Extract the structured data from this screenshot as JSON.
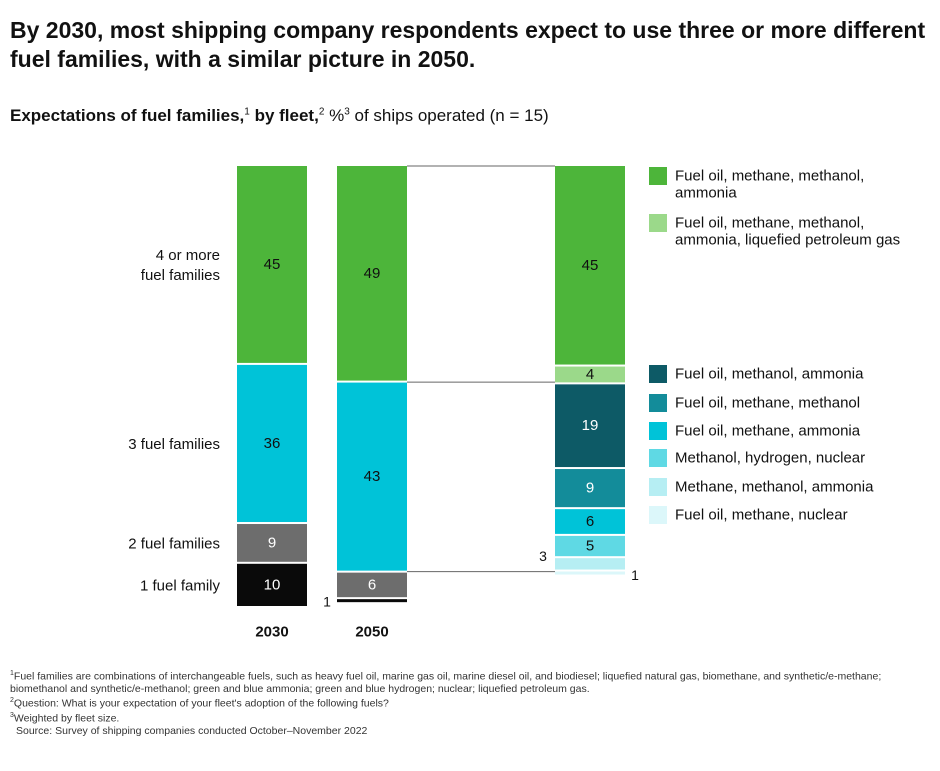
{
  "headline": "By 2030, most shipping company respondents expect to use three or more different fuel families, with a similar picture in 2050.",
  "subtitle": {
    "bold_part": "Expectations of fuel families,",
    "sup1": "1",
    "bold_part2": " by fleet,",
    "sup2": "2",
    "pct": " %",
    "sup3": "3",
    "rest": " of ships operated (n = 15)"
  },
  "chart_data": {
    "type": "bar",
    "stacked": true,
    "categories": [
      "2030",
      "2050"
    ],
    "row_labels": [
      {
        "lines": [
          "4 or more",
          "fuel families"
        ],
        "series": "4 or more fuel families"
      },
      {
        "lines": [
          "3 fuel families"
        ],
        "series": "3 fuel families"
      },
      {
        "lines": [
          "2 fuel families"
        ],
        "series": "2 fuel families"
      },
      {
        "lines": [
          "1 fuel family"
        ],
        "series": "1 fuel family"
      }
    ],
    "series": [
      {
        "name": "4 or more fuel families",
        "values": [
          45,
          49
        ],
        "color": "#4db53a",
        "labels": [
          "45",
          "49"
        ],
        "text_color": "#111"
      },
      {
        "name": "3 fuel families",
        "values": [
          36,
          43
        ],
        "color": "#00c3d8",
        "labels": [
          "36",
          "43"
        ],
        "text_color": "#111"
      },
      {
        "name": "2 fuel families",
        "values": [
          9,
          6
        ],
        "color": "#6d6d6d",
        "labels": [
          "9",
          "6"
        ],
        "text_color": "#ffffff"
      },
      {
        "name": "1 fuel family",
        "values": [
          10,
          1
        ],
        "color": "#0a0a0a",
        "labels": [
          "10",
          "1"
        ],
        "text_color": "#ffffff"
      }
    ],
    "breakdown": {
      "segments": [
        {
          "name": "Fuel oil, methane, methanol, ammonia",
          "value": 45,
          "label": "45",
          "color": "#4db53a",
          "text_color": "#111"
        },
        {
          "name": "Fuel oil, methane, methanol, ammonia, liquefied petroleum gas",
          "value": 4,
          "label": "4",
          "color": "#9bd98a",
          "text_color": "#111"
        },
        {
          "name": "Fuel oil, methanol, ammonia",
          "value": 19,
          "label": "19",
          "color": "#0d5a66",
          "text_color": "#ffffff"
        },
        {
          "name": "Fuel oil, methane, methanol",
          "value": 9,
          "label": "9",
          "color": "#138c9a",
          "text_color": "#ffffff"
        },
        {
          "name": "Fuel oil, methane, ammonia",
          "value": 6,
          "label": "6",
          "color": "#00c3d8",
          "text_color": "#111"
        },
        {
          "name": "Methanol, hydrogen, nuclear",
          "value": 5,
          "label": "5",
          "color": "#5fd9e4",
          "text_color": "#111"
        },
        {
          "name": "Methane, methanol, ammonia",
          "value": 3,
          "label": "3",
          "color": "#b6eef3",
          "text_color": "#111"
        },
        {
          "name": "Fuel oil, methane, nuclear",
          "value": 1,
          "label": "1",
          "color": "#dcf7fa",
          "text_color": "#111"
        }
      ]
    },
    "legend": [
      {
        "lines": [
          "Fuel oil, methane, methanol,",
          "ammonia"
        ],
        "color": "#4db53a"
      },
      {
        "lines": [
          "Fuel oil, methane, methanol,",
          "ammonia, liquefied petroleum gas"
        ],
        "color": "#9bd98a"
      },
      {
        "lines": [
          "Fuel oil, methanol, ammonia"
        ],
        "color": "#0d5a66"
      },
      {
        "lines": [
          "Fuel oil, methane, methanol"
        ],
        "color": "#138c9a"
      },
      {
        "lines": [
          "Fuel oil, methane, ammonia"
        ],
        "color": "#00c3d8"
      },
      {
        "lines": [
          "Methanol, hydrogen, nuclear"
        ],
        "color": "#5fd9e4"
      },
      {
        "lines": [
          "Methane, methanol, ammonia"
        ],
        "color": "#b6eef3"
      },
      {
        "lines": [
          "Fuel oil, methane, nuclear"
        ],
        "color": "#dcf7fa"
      }
    ],
    "legend_placement": "right"
  },
  "footnotes": [
    {
      "sup": "1",
      "text": "Fuel families are combinations of interchangeable fuels, such as heavy fuel oil, marine gas oil, marine diesel oil, and biodiesel; liquefied natural gas, biomethane, and synthetic/e-methane; biomethanol and synthetic/e-methanol; green and blue ammonia; green and blue hydrogen; nuclear; liquefied petroleum gas."
    },
    {
      "sup": "2",
      "text": "Question: What is your expectation of your fleet's adoption of the following fuels?"
    },
    {
      "sup": "3",
      "text": "Weighted by fleet size."
    },
    {
      "sup": "",
      "text": "Source: Survey of shipping companies conducted October–November 2022"
    }
  ]
}
